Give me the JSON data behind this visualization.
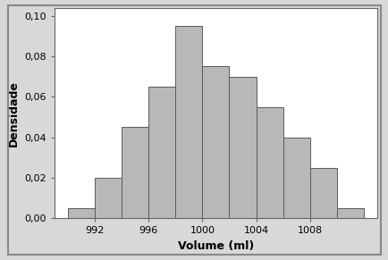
{
  "bin_edges": [
    990,
    992,
    994,
    996,
    998,
    1000,
    1002,
    1004,
    1006,
    1008,
    1010,
    1012
  ],
  "densities": [
    0.005,
    0.02,
    0.045,
    0.065,
    0.095,
    0.075,
    0.07,
    0.055,
    0.04,
    0.025,
    0.005
  ],
  "bar_color": "#b8b8b8",
  "bar_edge_color": "#5a5a5a",
  "bar_edge_width": 0.7,
  "xlabel": "Volume (ml)",
  "ylabel": "Densidade",
  "xlim": [
    989,
    1013
  ],
  "ylim": [
    0.0,
    0.104
  ],
  "xticks": [
    992,
    996,
    1000,
    1004,
    1008
  ],
  "yticks": [
    0.0,
    0.02,
    0.04,
    0.06,
    0.08,
    0.1
  ],
  "ytick_labels": [
    "0,00",
    "0,02",
    "0,04",
    "0,06",
    "0,08",
    "0,10"
  ],
  "background_color": "#d8d8d8",
  "plot_background_color": "#ffffff",
  "xlabel_fontsize": 9,
  "ylabel_fontsize": 9,
  "tick_fontsize": 8,
  "xlabel_fontweight": "bold",
  "ylabel_fontweight": "bold",
  "spine_color": "#666666",
  "spine_linewidth": 0.8,
  "outer_border_color": "#888888",
  "outer_border_linewidth": 1.5
}
